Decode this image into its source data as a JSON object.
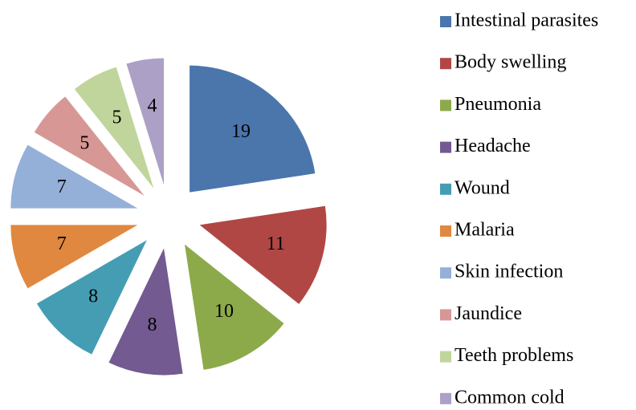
{
  "chart_data": {
    "type": "pie",
    "categories": [
      "Intestinal parasites",
      "Body swelling",
      "Pneumonia",
      "Headache",
      "Wound",
      "Malaria",
      "Skin infection",
      "Jaundice",
      "Teeth problems",
      "Common cold"
    ],
    "values": [
      19,
      11,
      10,
      8,
      8,
      7,
      7,
      5,
      5,
      4
    ],
    "colors": [
      "#4A76AC",
      "#B04745",
      "#8DAA4B",
      "#735A91",
      "#459DB3",
      "#E0883F",
      "#95B0D8",
      "#D79795",
      "#C0D59B",
      "#ADA0C6"
    ],
    "legend": "right"
  }
}
